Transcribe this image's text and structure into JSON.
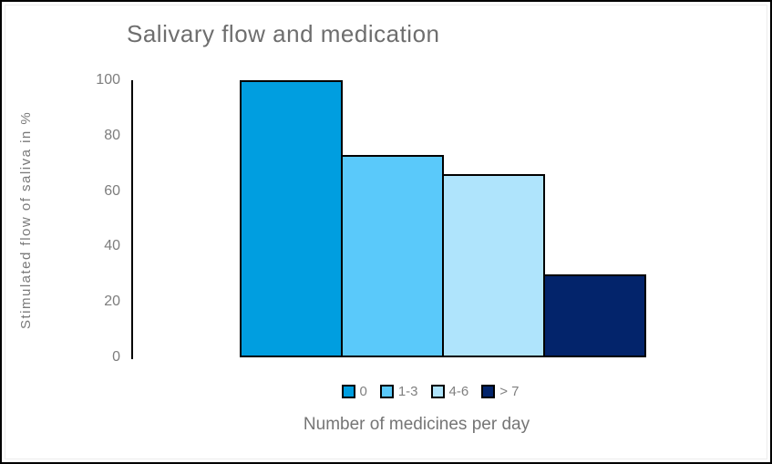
{
  "window": {
    "background": "#ffffff",
    "frame_color": "#000000"
  },
  "chart_data": {
    "type": "bar",
    "title": "Salivary flow and medication",
    "categories": [
      "0",
      "1-3",
      "4-6",
      "> 7"
    ],
    "values": [
      100,
      73,
      66,
      30
    ],
    "bar_colors": [
      "#009EE0",
      "#5AC9FA",
      "#AFE4FC",
      "#03246B"
    ],
    "bar_border_color": "#000000",
    "xlabel": "Number of medicines per day",
    "ylabel": "Stimulated flow of saliva in %",
    "y_ticks": [
      100,
      80,
      60,
      40,
      20,
      0
    ],
    "ylim": [
      0,
      100
    ],
    "grid": false,
    "legend_position": "bottom",
    "legend_labels": [
      "0",
      "1-3",
      "4-6",
      "> 7"
    ],
    "title_color": "#6E6E6E",
    "axis_text_color": "#7D7D7D"
  }
}
